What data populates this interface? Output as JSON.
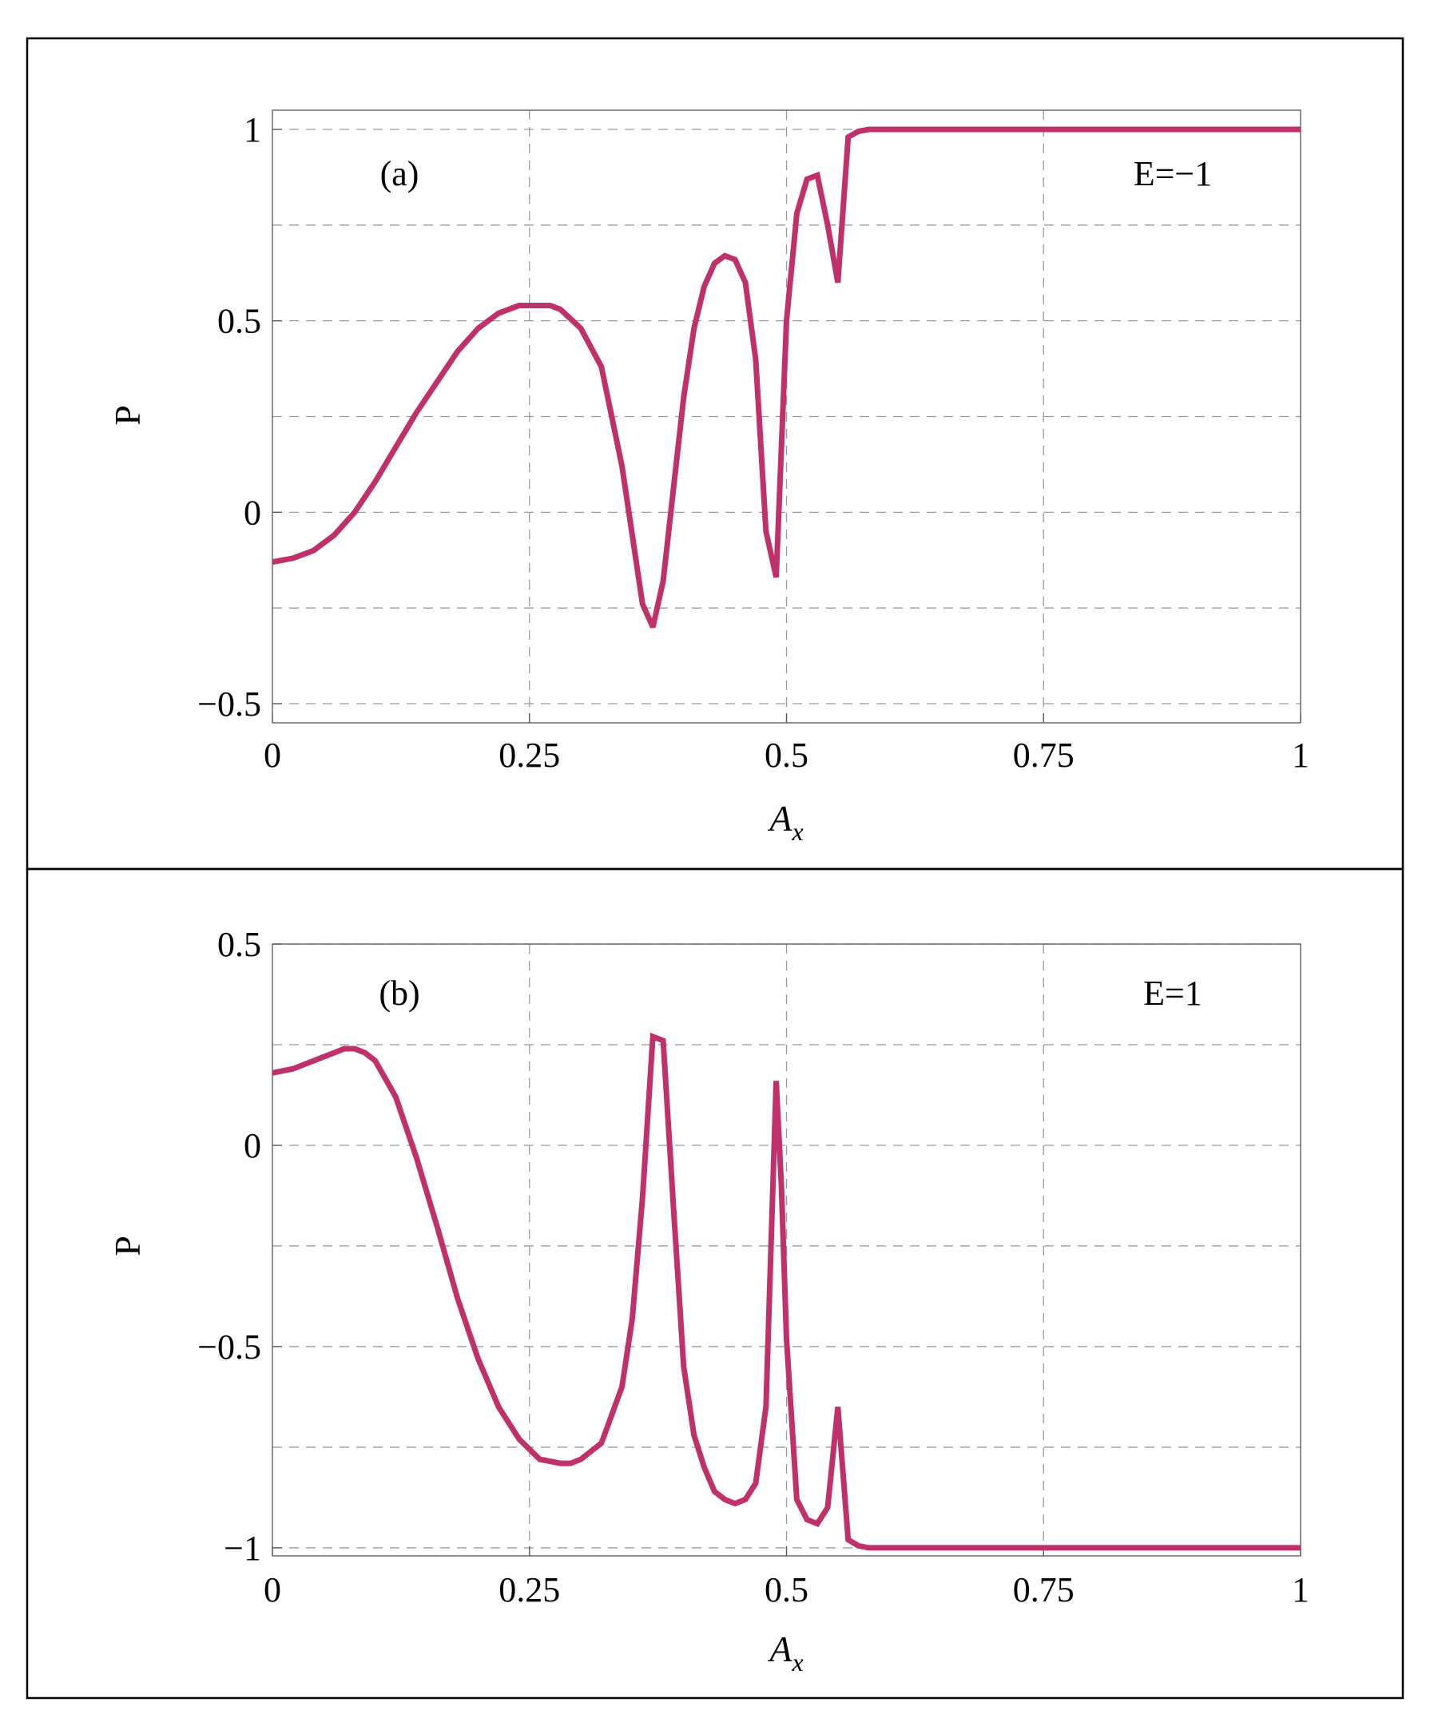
{
  "chart_data": [
    {
      "type": "line",
      "panel_label": "(a)",
      "annotation": "E=−1",
      "xlabel": "A",
      "xlabel_sub": "x",
      "ylabel": "P",
      "xlim": [
        0,
        1
      ],
      "ylim": [
        -0.55,
        1.05
      ],
      "xticks": [
        0,
        0.25,
        0.5,
        0.75,
        1
      ],
      "xtick_labels": [
        "0",
        "0.25",
        "0.5",
        "0.75",
        "1"
      ],
      "yticks": [
        -0.5,
        0,
        0.5,
        1
      ],
      "ytick_labels": [
        "−0.5",
        "0",
        "0.5",
        "1"
      ],
      "grid_x": [
        0.25,
        0.5,
        0.75
      ],
      "grid_y": [
        -0.5,
        -0.25,
        0,
        0.25,
        0.5,
        0.75,
        1
      ],
      "line_color": "#c0306a",
      "series": [
        {
          "x": [
            0,
            0.02,
            0.04,
            0.06,
            0.08,
            0.1,
            0.12,
            0.14,
            0.16,
            0.18,
            0.2,
            0.22,
            0.24,
            0.26,
            0.27,
            0.28,
            0.3,
            0.32,
            0.34,
            0.36,
            0.37,
            0.38,
            0.39,
            0.4,
            0.41,
            0.42,
            0.43,
            0.44,
            0.45,
            0.46,
            0.47,
            0.48,
            0.49,
            0.5,
            0.51,
            0.52,
            0.53,
            0.54,
            0.55,
            0.56,
            0.57,
            0.58,
            0.6,
            0.7,
            0.8,
            0.9,
            1.0
          ],
          "y": [
            -0.13,
            -0.12,
            -0.1,
            -0.06,
            0.0,
            0.08,
            0.17,
            0.26,
            0.34,
            0.42,
            0.48,
            0.52,
            0.54,
            0.54,
            0.54,
            0.53,
            0.48,
            0.38,
            0.12,
            -0.24,
            -0.3,
            -0.18,
            0.06,
            0.3,
            0.48,
            0.59,
            0.65,
            0.67,
            0.66,
            0.6,
            0.4,
            -0.05,
            -0.17,
            0.5,
            0.78,
            0.87,
            0.88,
            0.75,
            0.6,
            0.98,
            0.995,
            1.0,
            1.0,
            1.0,
            1.0,
            1.0,
            1.0
          ]
        }
      ]
    },
    {
      "type": "line",
      "panel_label": "(b)",
      "annotation": "E=1",
      "xlabel": "A",
      "xlabel_sub": "x",
      "ylabel": "P",
      "xlim": [
        0,
        1
      ],
      "ylim": [
        -1.02,
        0.5
      ],
      "xticks": [
        0,
        0.25,
        0.5,
        0.75,
        1
      ],
      "xtick_labels": [
        "0",
        "0.25",
        "0.5",
        "0.75",
        "1"
      ],
      "yticks": [
        -1,
        -0.5,
        0,
        0.5
      ],
      "ytick_labels": [
        "−1",
        "−0.5",
        "0",
        "0.5"
      ],
      "grid_x": [
        0.25,
        0.5,
        0.75
      ],
      "grid_y": [
        -1,
        -0.75,
        -0.5,
        -0.25,
        0,
        0.25,
        0.5
      ],
      "line_color": "#c0306a",
      "series": [
        {
          "x": [
            0,
            0.02,
            0.04,
            0.06,
            0.07,
            0.08,
            0.09,
            0.1,
            0.12,
            0.14,
            0.16,
            0.18,
            0.2,
            0.22,
            0.24,
            0.26,
            0.28,
            0.29,
            0.3,
            0.32,
            0.34,
            0.35,
            0.36,
            0.37,
            0.38,
            0.39,
            0.4,
            0.41,
            0.42,
            0.43,
            0.44,
            0.45,
            0.46,
            0.47,
            0.48,
            0.49,
            0.495,
            0.5,
            0.51,
            0.52,
            0.53,
            0.54,
            0.55,
            0.56,
            0.57,
            0.58,
            0.6,
            0.7,
            0.8,
            0.9,
            1.0
          ],
          "y": [
            0.18,
            0.19,
            0.21,
            0.23,
            0.24,
            0.24,
            0.23,
            0.21,
            0.12,
            -0.03,
            -0.2,
            -0.38,
            -0.53,
            -0.65,
            -0.73,
            -0.78,
            -0.79,
            -0.79,
            -0.78,
            -0.74,
            -0.6,
            -0.43,
            -0.13,
            0.27,
            0.26,
            -0.15,
            -0.55,
            -0.72,
            -0.8,
            -0.86,
            -0.88,
            -0.89,
            -0.88,
            -0.84,
            -0.65,
            0.16,
            -0.1,
            -0.48,
            -0.88,
            -0.93,
            -0.94,
            -0.9,
            -0.65,
            -0.98,
            -0.995,
            -1.0,
            -1.0,
            -1.0,
            -1.0,
            -1.0,
            -1.0
          ]
        }
      ]
    }
  ]
}
